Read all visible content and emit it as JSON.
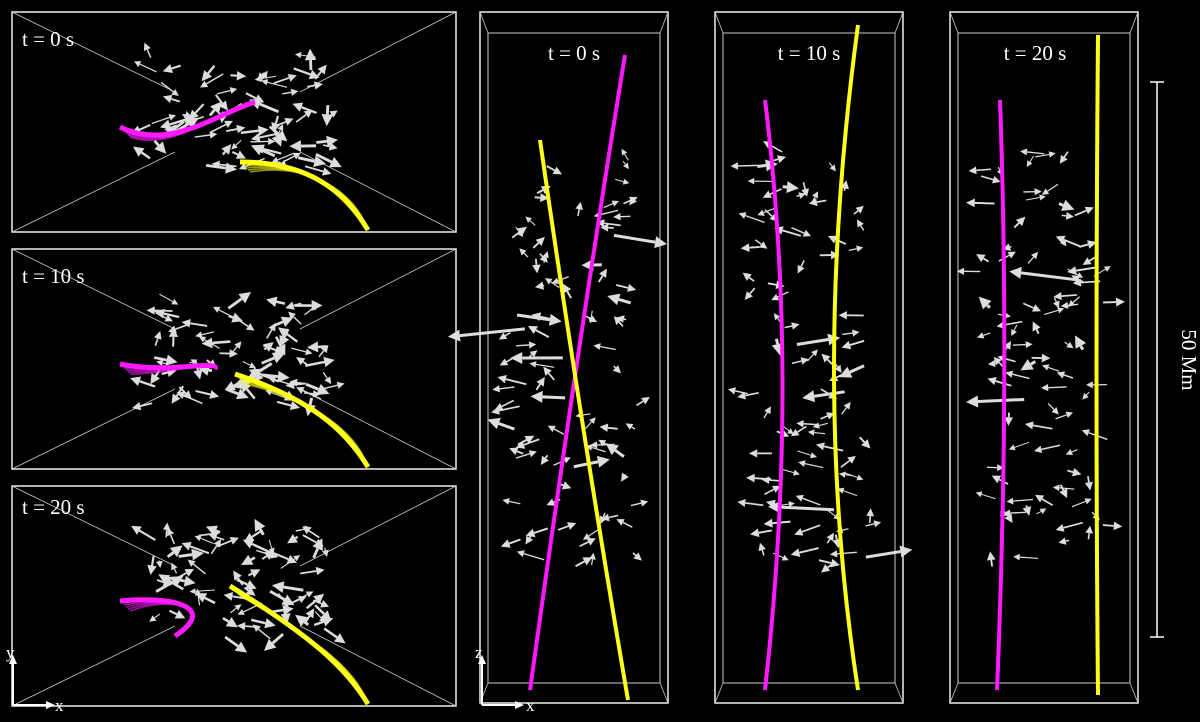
{
  "top_views": [
    {
      "label": "t = 0 s"
    },
    {
      "label": "t = 10 s"
    },
    {
      "label": "t = 20 s"
    }
  ],
  "side_views": [
    {
      "label": "t = 0 s"
    },
    {
      "label": "t = 10 s"
    },
    {
      "label": "t = 20 s"
    }
  ],
  "top_axes": {
    "y": "y",
    "x": "x"
  },
  "side_axes": {
    "z": "z",
    "x": "x"
  },
  "scale_bar": {
    "label": "50 Mm"
  }
}
